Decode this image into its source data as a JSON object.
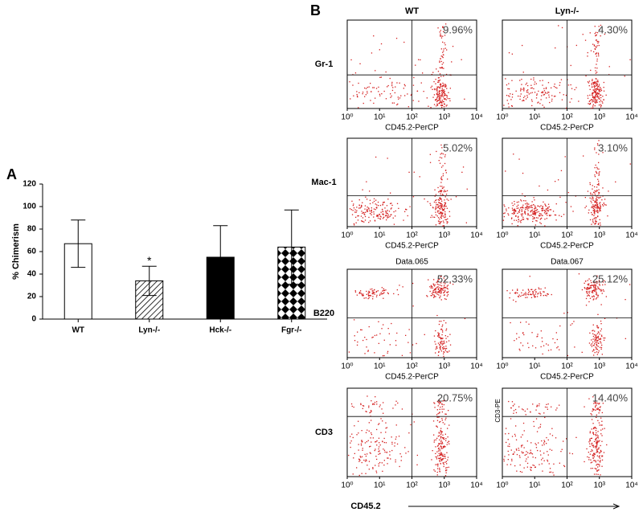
{
  "chart_data": [
    {
      "type": "bar",
      "panel_label": "A",
      "ylabel": "% Chimerism",
      "categories": [
        "WT",
        "Lyn-/-",
        "Hck-/-",
        "Fgr-/-"
      ],
      "values": [
        67,
        34,
        55,
        64
      ],
      "errors": [
        21,
        13,
        28,
        33
      ],
      "fills": [
        "white",
        "hatch",
        "black",
        "checker"
      ],
      "annotations": [
        null,
        "*",
        null,
        null
      ],
      "ylim": [
        0,
        120
      ],
      "yticks": [
        0,
        20,
        40,
        60,
        80,
        100,
        120
      ]
    },
    {
      "type": "dot-plot-grid",
      "panel_label": "B",
      "columns": [
        "WT",
        "Lyn-/-"
      ],
      "rows": [
        "Gr-1",
        "Mac-1",
        "B220",
        "CD3"
      ],
      "xlabel": "CD45.2",
      "log_x": true,
      "xlim": [
        1,
        10000
      ],
      "xticks": [
        {
          "value": 1,
          "label": "10⁰"
        },
        {
          "value": 10,
          "label": "10¹"
        },
        {
          "value": 100,
          "label": "10²"
        },
        {
          "value": 1000,
          "label": "10³"
        },
        {
          "value": 10000,
          "label": "10⁴"
        }
      ],
      "plots": [
        {
          "percent": 9.96,
          "percent_label": "9.96%",
          "axis_title": "CD45.2-PerCP"
        },
        {
          "percent": 4.3,
          "percent_label": "4.30%",
          "axis_title": "CD45.2-PerCP"
        },
        {
          "percent": 5.02,
          "percent_label": "5.02%",
          "axis_title": "CD45.2-PerCP"
        },
        {
          "percent": 3.1,
          "percent_label": "3.10%",
          "axis_title": "CD45.2-PerCP"
        },
        {
          "percent": 52.33,
          "percent_label": "52.33%",
          "axis_title": "CD45.2-PerCP",
          "header": "Data.065"
        },
        {
          "percent": 25.12,
          "percent_label": "25.12%",
          "axis_title": "CD45.2-PerCP",
          "header": "Data.067"
        },
        {
          "percent": 20.75,
          "percent_label": "20.75%"
        },
        {
          "percent": 14.4,
          "percent_label": "14.40%",
          "ylabel": "CD3-PE"
        }
      ]
    }
  ]
}
